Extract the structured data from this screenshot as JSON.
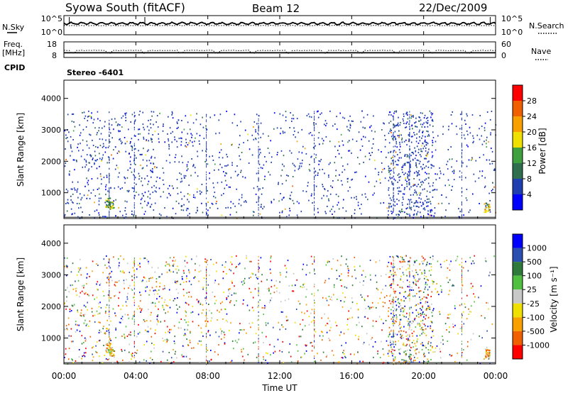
{
  "header": {
    "station": "Syowa South (fitACF)",
    "beam": "Beam 12",
    "date": "22/Dec/2009"
  },
  "left_labels": {
    "nsky": "N.Sky",
    "freq_line1": "Freq.",
    "freq_line2": "[MHz]",
    "cpid": "CPID"
  },
  "right_labels": {
    "nsearch": "N.Search",
    "nave": "Nave"
  },
  "cpid_text": "Stereo -6401",
  "colors": {
    "power": [
      "#0000ff",
      "#1f3fb0",
      "#2f6f4f",
      "#3fa040",
      "#f0e000",
      "#f8a000",
      "#f06000",
      "#ff0000"
    ],
    "velocity": [
      "#0000ff",
      "#2a4fb0",
      "#2e7a3a",
      "#50c040",
      "#c8c8c8",
      "#f0e000",
      "#f8a000",
      "#f06000",
      "#ff0000"
    ]
  },
  "chart_data": [
    {
      "type": "line",
      "panel": "noise",
      "x_range_hours": [
        0,
        24
      ],
      "y_left_ticks": [
        "10^5",
        "10^0"
      ],
      "y_right_ticks": [
        "10^5",
        "10^0"
      ],
      "series": [
        {
          "name": "N.Sky",
          "style": "solid"
        },
        {
          "name": "N.Search",
          "style": "dotted"
        }
      ]
    },
    {
      "type": "line",
      "panel": "frequency",
      "x_range_hours": [
        0,
        24
      ],
      "y_left_ticks": [
        18,
        8
      ],
      "y_right_ticks": [
        60,
        0
      ],
      "series": [
        {
          "name": "Freq.",
          "style": "solid",
          "approx_value_mhz": 11
        },
        {
          "name": "Nave",
          "style": "dotted",
          "approx_value": 27
        }
      ]
    },
    {
      "type": "heatmap",
      "panel": "power",
      "ylabel": "Slant Range [km]",
      "ylim": [
        180,
        4580
      ],
      "yticks": [
        1000,
        2000,
        3000,
        4000
      ],
      "x_range_hours": [
        0,
        24
      ],
      "data_range_km": [
        180,
        3600
      ],
      "colorbar": {
        "label": "Power [dB]",
        "ticks": [
          4,
          8,
          12,
          16,
          20,
          24,
          28
        ],
        "range": [
          0,
          32
        ]
      }
    },
    {
      "type": "heatmap",
      "panel": "velocity",
      "ylabel": "Slant Range [km]",
      "ylim": [
        180,
        4580
      ],
      "yticks": [
        1000,
        2000,
        3000,
        4000
      ],
      "x_range_hours": [
        0,
        24
      ],
      "data_range_km": [
        180,
        3600
      ],
      "colorbar": {
        "label": "Velocity [m s⁻¹]",
        "ticks": [
          "1000",
          "500",
          "100",
          "25",
          "-25",
          "-100",
          "-500",
          "-1000"
        ]
      }
    }
  ],
  "x_axis": {
    "label": "Time UT",
    "ticks": [
      "00:00",
      "04:00",
      "08:00",
      "12:00",
      "16:00",
      "20:00",
      "00:00"
    ]
  }
}
